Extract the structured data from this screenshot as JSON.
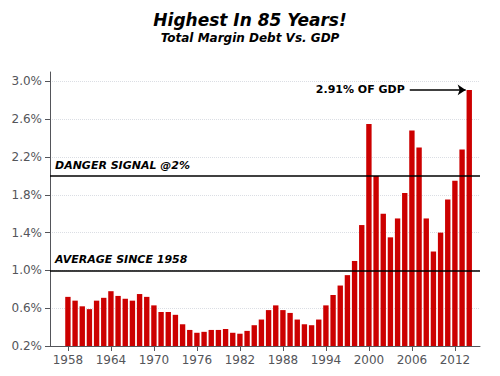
{
  "chart_data": {
    "type": "bar",
    "title": "Highest In 85 Years!",
    "subtitle": "Total Margin Debt Vs. GDP",
    "x": [
      1958,
      1959,
      1960,
      1961,
      1962,
      1963,
      1964,
      1965,
      1966,
      1967,
      1968,
      1969,
      1970,
      1971,
      1972,
      1973,
      1974,
      1975,
      1976,
      1977,
      1978,
      1979,
      1980,
      1981,
      1982,
      1983,
      1984,
      1985,
      1986,
      1987,
      1988,
      1989,
      1990,
      1991,
      1992,
      1993,
      1994,
      1995,
      1996,
      1997,
      1998,
      1999,
      2000,
      2001,
      2002,
      2003,
      2004,
      2005,
      2006,
      2007,
      2008,
      2009,
      2010,
      2011,
      2012,
      2013,
      2014
    ],
    "values": [
      0.0072,
      0.0068,
      0.0062,
      0.0059,
      0.0068,
      0.0071,
      0.0078,
      0.0073,
      0.007,
      0.0068,
      0.0075,
      0.0072,
      0.0063,
      0.0056,
      0.0056,
      0.0053,
      0.0043,
      0.0037,
      0.0034,
      0.0035,
      0.0037,
      0.0037,
      0.0038,
      0.0034,
      0.0033,
      0.0036,
      0.0042,
      0.0048,
      0.0058,
      0.0063,
      0.0058,
      0.0055,
      0.0048,
      0.0043,
      0.0042,
      0.0048,
      0.0063,
      0.0074,
      0.0084,
      0.0095,
      0.011,
      0.0148,
      0.0255,
      0.02,
      0.016,
      0.0135,
      0.0155,
      0.0182,
      0.0248,
      0.023,
      0.0155,
      0.012,
      0.014,
      0.0175,
      0.0195,
      0.0228,
      0.0291
    ],
    "color": "#cc0000",
    "xlim": [
      1955.5,
      2015.5
    ],
    "xticks": [
      1958,
      1964,
      1970,
      1976,
      1982,
      1988,
      1994,
      2000,
      2006,
      2012
    ],
    "ylim": [
      0.002,
      0.031
    ],
    "yticks": [
      {
        "value": 0.002,
        "label": "0.2%"
      },
      {
        "value": 0.006,
        "label": "0.6%"
      },
      {
        "value": 0.01,
        "label": "1.0%"
      },
      {
        "value": 0.014,
        "label": "1.4%"
      },
      {
        "value": 0.018,
        "label": "1.8%"
      },
      {
        "value": 0.022,
        "label": "2.2%"
      },
      {
        "value": 0.026,
        "label": "2.6%"
      },
      {
        "value": 0.03,
        "label": "3.0%"
      }
    ],
    "grid": true,
    "reference_lines": [
      {
        "value": 0.02,
        "label": "DANGER SIGNAL @2%"
      },
      {
        "value": 0.01,
        "label": "AVERAGE SINCE 1958"
      }
    ],
    "annotations": [
      {
        "text": "2.91% OF GDP",
        "x": 2013.5,
        "y": 0.0291
      }
    ]
  }
}
